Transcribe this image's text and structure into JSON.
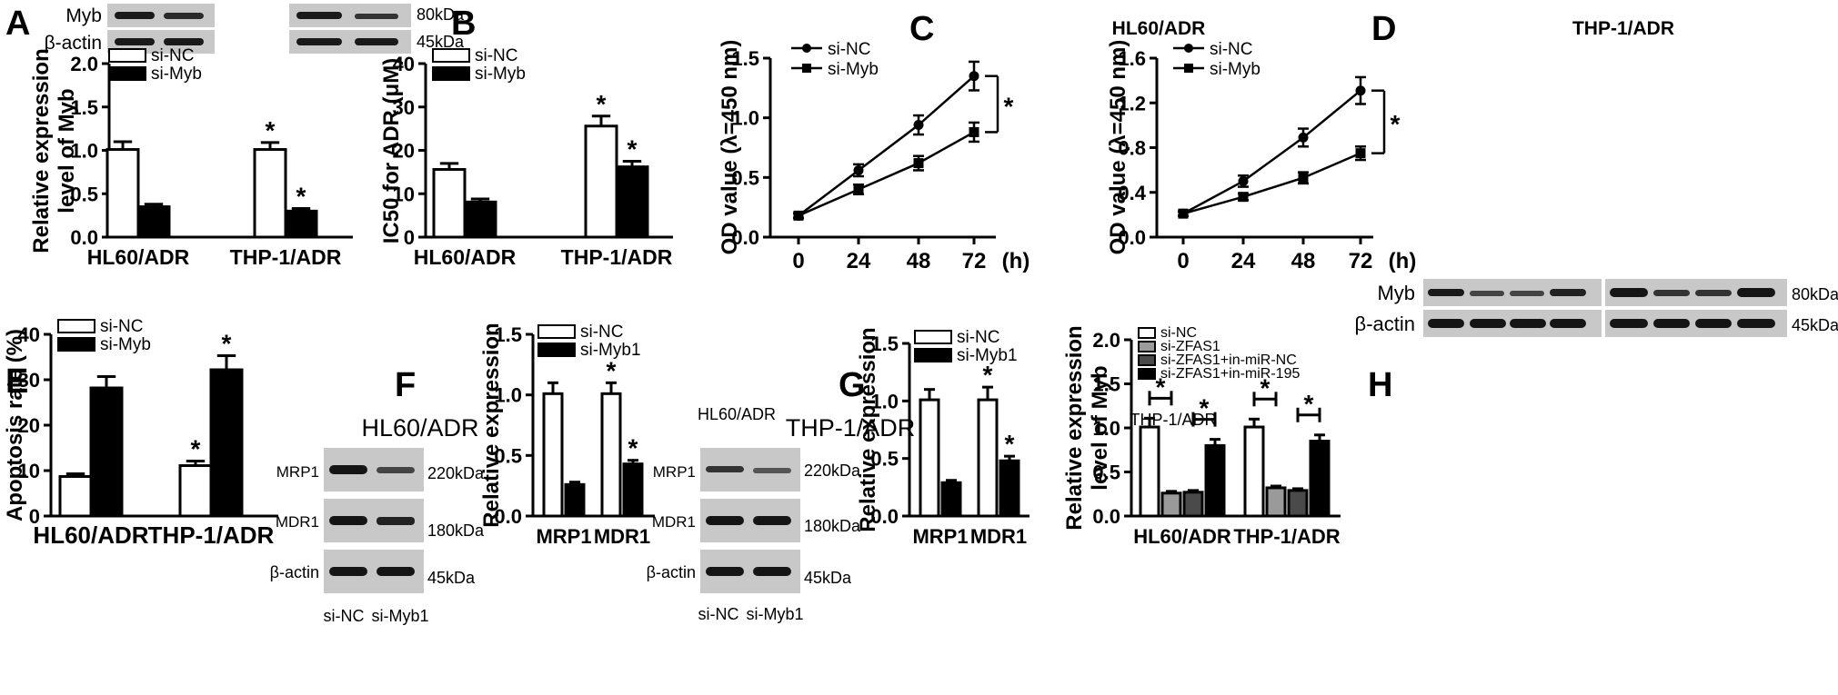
{
  "panels": [
    {
      "letter": "A",
      "kind": "bar",
      "ylabel": [
        "Relative expression",
        "level of Myb"
      ],
      "ylim": [
        0,
        2
      ],
      "ticks": [
        "0.0",
        "0.5",
        "1.0",
        "1.5",
        "2.0"
      ],
      "categories": [
        "HL60/ADR",
        "THP-1/ADR"
      ],
      "series": [
        {
          "name": "si-NC",
          "fill": "#ffffff",
          "values": [
            1.01,
            1.01
          ],
          "err": [
            0.09,
            0.08
          ]
        },
        {
          "name": "si-Myb",
          "fill": "#000000",
          "values": [
            0.35,
            0.3
          ],
          "err": [
            0.03,
            0.03
          ]
        }
      ],
      "stars": [
        [
          false,
          true
        ],
        [
          false,
          true
        ]
      ],
      "blot": {
        "labels": [
          "Myb",
          "β-actin"
        ],
        "kda": [
          "80kDa",
          "45kDa"
        ]
      }
    },
    {
      "letter": "B",
      "kind": "bar",
      "ylabel": [
        "IC50 for ADR (μM)"
      ],
      "ylim": [
        0,
        40
      ],
      "ticks": [
        "0",
        "10",
        "20",
        "30",
        "40"
      ],
      "categories": [
        "HL60/ADR",
        "THP-1/ADR"
      ],
      "series": [
        {
          "name": "si-NC",
          "fill": "#ffffff",
          "values": [
            15.6,
            25.6
          ],
          "err": [
            1.4,
            2.3
          ]
        },
        {
          "name": "si-Myb",
          "fill": "#000000",
          "values": [
            8.1,
            16.2
          ],
          "err": [
            0.7,
            1.3
          ]
        }
      ],
      "stars": [
        [
          false,
          true
        ],
        [
          false,
          true
        ]
      ]
    },
    {
      "letter": "C",
      "kind": "line",
      "title": "HL60/ADR",
      "ylabel": [
        "OD value (λ=450 nm)"
      ],
      "ylim": [
        0,
        1.5
      ],
      "ticks": [
        "0.0",
        "0.5",
        "1.0",
        "1.5"
      ],
      "x": [
        "0",
        "24",
        "48",
        "72"
      ],
      "xunit": "(h)",
      "series": [
        {
          "name": "si-NC",
          "marker": "circle",
          "values": [
            0.18,
            0.56,
            0.94,
            1.35
          ],
          "err": [
            0.02,
            0.05,
            0.08,
            0.12
          ]
        },
        {
          "name": "si-Myb",
          "marker": "square",
          "values": [
            0.18,
            0.4,
            0.62,
            0.88
          ],
          "err": [
            0.02,
            0.04,
            0.06,
            0.08
          ]
        }
      ]
    },
    {
      "letter": "D",
      "kind": "line",
      "title": "THP-1/ADR",
      "ylabel": [
        "OD value (λ=450 nm)"
      ],
      "ylim": [
        0,
        1.6
      ],
      "ticks": [
        "0.0",
        "0.4",
        "0.8",
        "1.2",
        "1.6"
      ],
      "x": [
        "0",
        "24",
        "48",
        "72"
      ],
      "xunit": "(h)",
      "series": [
        {
          "name": "si-NC",
          "marker": "circle",
          "values": [
            0.21,
            0.5,
            0.89,
            1.31
          ],
          "err": [
            0.02,
            0.05,
            0.08,
            0.12
          ]
        },
        {
          "name": "si-Myb",
          "marker": "square",
          "values": [
            0.21,
            0.36,
            0.53,
            0.75
          ],
          "err": [
            0.02,
            0.03,
            0.05,
            0.06
          ]
        }
      ]
    },
    {
      "letter": "E",
      "kind": "bar",
      "ylabel": [
        "Apoptosis rate (%)"
      ],
      "ylim": [
        0,
        40
      ],
      "ticks": [
        "0",
        "10",
        "20",
        "30",
        "40"
      ],
      "categories": [
        "HL60/ADR",
        "THP-1/ADR"
      ],
      "series": [
        {
          "name": "si-NC",
          "fill": "#ffffff",
          "values": [
            8.7,
            11.1
          ],
          "err": [
            0.6,
            1.0
          ]
        },
        {
          "name": "si-Myb",
          "fill": "#000000",
          "values": [
            28.2,
            32.2
          ],
          "err": [
            2.5,
            3.1
          ]
        }
      ],
      "stars": [
        [
          false,
          true
        ],
        [
          false,
          true
        ]
      ]
    },
    {
      "letter": "F",
      "kind": "bar",
      "title": "HL60/ADR",
      "ylabel": [
        "Relative expression"
      ],
      "ylim": [
        0,
        1.5
      ],
      "ticks": [
        "0.0",
        "0.5",
        "1.0",
        "1.5"
      ],
      "categories": [
        "MRP1",
        "MDR1"
      ],
      "series": [
        {
          "name": "si-NC",
          "fill": "#ffffff",
          "values": [
            1.01,
            1.01
          ],
          "err": [
            0.09,
            0.09
          ]
        },
        {
          "name": "si-Myb1",
          "fill": "#000000",
          "values": [
            0.26,
            0.43
          ],
          "err": [
            0.02,
            0.03
          ]
        }
      ],
      "stars": [
        [
          false,
          true
        ],
        [
          false,
          true
        ]
      ],
      "blot": {
        "title": "HL60/ADR",
        "labels": [
          "MRP1",
          "MDR1",
          "β-actin"
        ],
        "kda": [
          "220kDa",
          "180kDa",
          "45kDa"
        ],
        "lanes": [
          "si-NC",
          "si-Myb1"
        ]
      }
    },
    {
      "letter": "G",
      "kind": "bar",
      "title": "THP-1/ADR",
      "ylabel": [
        "Relative expression"
      ],
      "ylim": [
        0,
        1.5
      ],
      "ticks": [
        "0.0",
        "0.5",
        "1.0",
        "1.5"
      ],
      "categories": [
        "MRP1",
        "MDR1"
      ],
      "series": [
        {
          "name": "si-NC",
          "fill": "#ffffff",
          "values": [
            1.01,
            1.01
          ],
          "err": [
            0.09,
            0.11
          ]
        },
        {
          "name": "si-Myb1",
          "fill": "#000000",
          "values": [
            0.29,
            0.48
          ],
          "err": [
            0.02,
            0.04
          ]
        }
      ],
      "stars": [
        [
          false,
          true
        ],
        [
          false,
          true
        ]
      ],
      "blot": {
        "title": "THP-1/ADR",
        "labels": [
          "MRP1",
          "MDR1",
          "β-actin"
        ],
        "kda": [
          "220kDa",
          "180kDa",
          "45kDa"
        ],
        "lanes": [
          "si-NC",
          "si-Myb1"
        ]
      }
    },
    {
      "letter": "H",
      "kind": "bar",
      "ylabel": [
        "Relative expression",
        "level of Myb"
      ],
      "ylim": [
        0,
        2
      ],
      "ticks": [
        "0.0",
        "0.5",
        "1.0",
        "1.5",
        "2.0"
      ],
      "categories": [
        "HL60/ADR",
        "THP-1/ADR"
      ],
      "series": [
        {
          "name": "si-NC",
          "fill": "#ffffff",
          "values": [
            1.01,
            1.01
          ],
          "err": [
            0.1,
            0.09
          ]
        },
        {
          "name": "si-ZFAS1",
          "fill": "#9a9a9a",
          "values": [
            0.26,
            0.32
          ],
          "err": [
            0.02,
            0.02
          ]
        },
        {
          "name": "si-ZFAS1+in-miR-NC",
          "fill": "#4a4a4a",
          "values": [
            0.27,
            0.29
          ],
          "err": [
            0.02,
            0.02
          ]
        },
        {
          "name": "si-ZFAS1+in-miR-195",
          "fill": "#000000",
          "values": [
            0.8,
            0.85
          ],
          "err": [
            0.07,
            0.07
          ]
        }
      ],
      "stars": [],
      "brackets": [
        "*",
        "*",
        "*",
        "*"
      ],
      "blot": {
        "labels": [
          "Myb",
          "β-actin"
        ],
        "kda": [
          "80kDa",
          "45kDa"
        ]
      }
    }
  ]
}
